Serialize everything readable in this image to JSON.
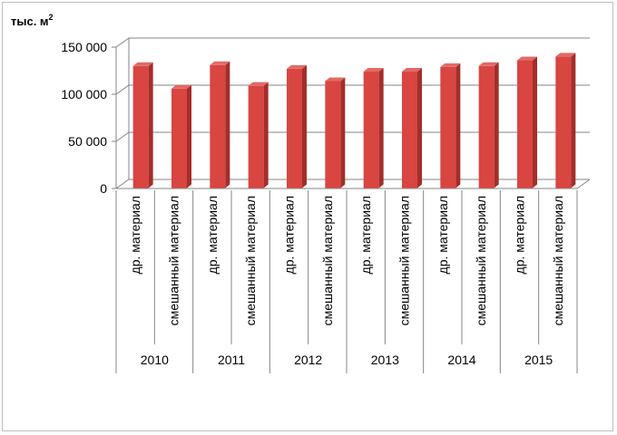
{
  "chart_data": {
    "type": "bar",
    "unit_label": "тыс. м",
    "unit_power": "2",
    "y_ticks": [
      "0",
      "50 000",
      "100 000",
      "150 000"
    ],
    "ylim": [
      0,
      150000
    ],
    "grid": true,
    "groups": [
      "2010",
      "2011",
      "2012",
      "2013",
      "2014",
      "2015"
    ],
    "categories": [
      "др. материал",
      "смешанный материал",
      "др. материал",
      "смешанный материал",
      "др. материал",
      "смешанный материал",
      "др. материал",
      "смешанный материал",
      "др. материал",
      "смешанный материал",
      "др. материал",
      "смешанный материал"
    ],
    "values": [
      130000,
      106000,
      131000,
      109000,
      127000,
      114000,
      124000,
      124000,
      129000,
      130000,
      136000,
      140000
    ],
    "bar_color": "#d94541",
    "bar_side_color": "#a32e2b",
    "bar_top_color": "#e06a66"
  }
}
